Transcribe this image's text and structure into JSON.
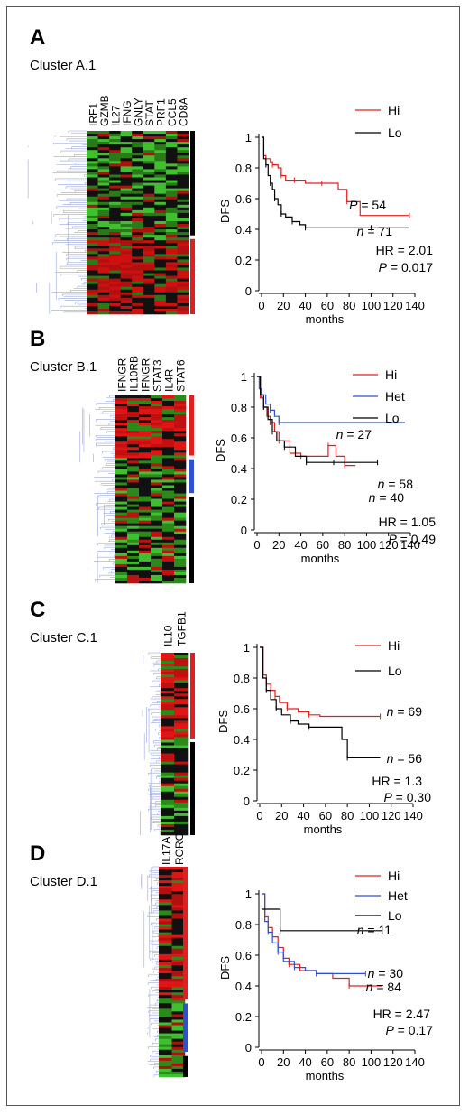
{
  "panels": [
    {
      "label": "A",
      "cluster": "Cluster A.1",
      "genes": [
        "IRF1",
        "GZMB",
        "IL27",
        "IFNG",
        "GNLY",
        "STAT",
        "PRF1",
        "CCL5",
        "CD8A"
      ],
      "sidebars": [
        {
          "color": "#000000",
          "frac": [
            0.0,
            0.57
          ]
        },
        {
          "color": "#e02020",
          "frac": [
            0.59,
            1.0
          ]
        }
      ],
      "heat_colors": [
        "#111111",
        "#b01010",
        "#d01010",
        "#2a7a1a",
        "#40c030",
        "#000000",
        "#101010",
        "#8c0c0c"
      ],
      "km": {
        "legend": [
          {
            "name": "Hi",
            "color": "#e02020"
          },
          {
            "name": "Lo",
            "color": "#000000"
          }
        ],
        "ylabel": "DFS",
        "xlabel": "months",
        "yticks": [
          "0",
          "0.2",
          "0.4",
          "0.6",
          "0.8",
          "1"
        ],
        "xticks": [
          "0",
          "20",
          "40",
          "60",
          "80",
          "100",
          "120",
          "140"
        ],
        "annotations": [
          {
            "text": "P = 54"
          },
          {
            "text": "n = 71"
          },
          {
            "text": "HR = 2.01"
          },
          {
            "text": "P = 0.017"
          }
        ]
      }
    },
    {
      "label": "B",
      "cluster": "Cluster B.1",
      "genes": [
        "IFNGR",
        "IL10RB",
        "IFNGR",
        "STAT3",
        "IL4R",
        "STAT6"
      ],
      "sidebars": [
        {
          "color": "#e02020",
          "frac": [
            0.0,
            0.32
          ]
        },
        {
          "color": "#3050d0",
          "frac": [
            0.34,
            0.52
          ]
        },
        {
          "color": "#000000",
          "frac": [
            0.54,
            1.0
          ]
        }
      ],
      "heat_colors": [
        "#111111",
        "#c01010",
        "#e01515",
        "#2a8a1a",
        "#40c030",
        "#000000",
        "#700a0a",
        "#1a5a10"
      ],
      "km": {
        "legend": [
          {
            "name": "Hi",
            "color": "#e02020"
          },
          {
            "name": "Het",
            "color": "#3050d0"
          },
          {
            "name": "Lo",
            "color": "#000000"
          }
        ],
        "ylabel": "DFS",
        "xlabel": "months",
        "yticks": [
          "0",
          "0.2",
          "0.4",
          "0.6",
          "0.8",
          "1"
        ],
        "xticks": [
          "0",
          "20",
          "40",
          "60",
          "80",
          "100",
          "120",
          "140"
        ],
        "annotations": [
          {
            "text": "n = 27"
          },
          {
            "text": "n = 58"
          },
          {
            "text": "n = 40"
          },
          {
            "text": "HR = 1.05"
          },
          {
            "text": "P = 0.49"
          }
        ]
      }
    },
    {
      "label": "C",
      "cluster": "Cluster C.1",
      "genes": [
        "IL10",
        "TGFB1"
      ],
      "sidebars": [
        {
          "color": "#e02020",
          "frac": [
            0.0,
            0.47
          ]
        },
        {
          "color": "#000000",
          "frac": [
            0.49,
            1.0
          ]
        }
      ],
      "heat_colors": [
        "#111111",
        "#c01010",
        "#e01515",
        "#2a8a1a",
        "#40c030",
        "#000000",
        "#700a0a"
      ],
      "km": {
        "legend": [
          {
            "name": "Hi",
            "color": "#e02020"
          },
          {
            "name": "Lo",
            "color": "#000000"
          }
        ],
        "ylabel": "DFS",
        "xlabel": "months",
        "yticks": [
          "0",
          "0.2",
          "0.4",
          "0.6",
          "0.8",
          "1"
        ],
        "xticks": [
          "0",
          "20",
          "40",
          "60",
          "80",
          "100",
          "120",
          "140"
        ],
        "annotations": [
          {
            "text": "n = 69"
          },
          {
            "text": "n = 56"
          },
          {
            "text": "HR = 1.3"
          },
          {
            "text": "P = 0.30"
          }
        ]
      }
    },
    {
      "label": "D",
      "cluster": "Cluster D.1",
      "genes": [
        "IL17A",
        "RORC"
      ],
      "sidebars": [
        {
          "color": "#e02020",
          "frac": [
            0.0,
            0.63
          ]
        },
        {
          "color": "#3050d0",
          "frac": [
            0.65,
            0.88
          ]
        },
        {
          "color": "#000000",
          "frac": [
            0.9,
            1.0
          ]
        }
      ],
      "heat_colors": [
        "#111111",
        "#b01010",
        "#e01515",
        "#2a8a1a",
        "#40c030",
        "#000000"
      ],
      "km": {
        "legend": [
          {
            "name": "Hi",
            "color": "#e02020"
          },
          {
            "name": "Het",
            "color": "#3050d0"
          },
          {
            "name": "Lo",
            "color": "#000000"
          }
        ],
        "ylabel": "DFS",
        "xlabel": "months",
        "yticks": [
          "0",
          "0.2",
          "0.4",
          "0.6",
          "0.8",
          "1"
        ],
        "xticks": [
          "0",
          "20",
          "40",
          "60",
          "80",
          "100",
          "120",
          "140"
        ],
        "annotations": [
          {
            "text": "n = 11"
          },
          {
            "text": "n = 30"
          },
          {
            "text": "n = 84"
          },
          {
            "text": "HR = 2.47"
          },
          {
            "text": "P = 0.17"
          }
        ]
      }
    }
  ],
  "chart_data": [
    {
      "type": "line",
      "title": "Cluster A.1",
      "xlabel": "months",
      "ylabel": "DFS",
      "xlim": [
        0,
        140
      ],
      "ylim": [
        0,
        1
      ],
      "series": [
        {
          "name": "Hi",
          "color": "#e02020",
          "x": [
            0,
            2,
            4,
            8,
            10,
            15,
            18,
            22,
            30,
            40,
            55,
            70,
            78,
            90,
            135
          ],
          "y": [
            1,
            0.88,
            0.86,
            0.84,
            0.82,
            0.8,
            0.75,
            0.72,
            0.72,
            0.7,
            0.7,
            0.66,
            0.58,
            0.49,
            0.49
          ]
        },
        {
          "name": "Lo",
          "color": "#000000",
          "x": [
            0,
            2,
            4,
            6,
            8,
            10,
            12,
            15,
            18,
            22,
            28,
            35,
            40,
            60,
            100,
            135
          ],
          "y": [
            1,
            0.86,
            0.82,
            0.75,
            0.7,
            0.66,
            0.6,
            0.56,
            0.5,
            0.48,
            0.45,
            0.43,
            0.41,
            0.41,
            0.41,
            0.41
          ]
        }
      ]
    },
    {
      "type": "line",
      "title": "Cluster B.1",
      "xlabel": "months",
      "ylabel": "DFS",
      "xlim": [
        0,
        140
      ],
      "ylim": [
        0,
        1
      ],
      "series": [
        {
          "name": "Hi",
          "color": "#e02020",
          "x": [
            0,
            3,
            6,
            9,
            12,
            16,
            20,
            30,
            40,
            50,
            65,
            72,
            80,
            90
          ],
          "y": [
            1,
            0.86,
            0.8,
            0.74,
            0.7,
            0.64,
            0.58,
            0.5,
            0.48,
            0.48,
            0.55,
            0.48,
            0.42,
            0.42
          ]
        },
        {
          "name": "Het",
          "color": "#3050d0",
          "x": [
            0,
            2,
            4,
            8,
            12,
            16,
            20,
            135
          ],
          "y": [
            1,
            0.92,
            0.88,
            0.82,
            0.78,
            0.74,
            0.7,
            0.7
          ]
        },
        {
          "name": "Lo",
          "color": "#000000",
          "x": [
            0,
            3,
            6,
            10,
            14,
            18,
            25,
            35,
            45,
            55,
            70,
            85,
            110
          ],
          "y": [
            1,
            0.88,
            0.8,
            0.72,
            0.64,
            0.58,
            0.54,
            0.48,
            0.44,
            0.44,
            0.44,
            0.44,
            0.44
          ]
        }
      ]
    },
    {
      "type": "line",
      "title": "Cluster C.1",
      "xlabel": "months",
      "ylabel": "DFS",
      "xlim": [
        0,
        140
      ],
      "ylim": [
        0,
        1
      ],
      "series": [
        {
          "name": "Hi",
          "color": "#e02020",
          "x": [
            0,
            3,
            6,
            10,
            14,
            18,
            25,
            35,
            45,
            55,
            110
          ],
          "y": [
            1,
            0.82,
            0.76,
            0.72,
            0.68,
            0.64,
            0.6,
            0.58,
            0.56,
            0.55,
            0.55
          ]
        },
        {
          "name": "Lo",
          "color": "#000000",
          "x": [
            0,
            3,
            6,
            10,
            15,
            20,
            28,
            35,
            45,
            75,
            80,
            110
          ],
          "y": [
            1,
            0.8,
            0.72,
            0.66,
            0.6,
            0.56,
            0.52,
            0.5,
            0.48,
            0.4,
            0.28,
            0.28
          ]
        }
      ]
    },
    {
      "type": "line",
      "title": "Cluster D.1",
      "xlabel": "months",
      "ylabel": "DFS",
      "xlim": [
        0,
        140
      ],
      "ylim": [
        0,
        1
      ],
      "series": [
        {
          "name": "Hi",
          "color": "#e02020",
          "x": [
            0,
            3,
            6,
            10,
            15,
            20,
            25,
            35,
            50,
            65,
            80,
            110
          ],
          "y": [
            1,
            0.85,
            0.78,
            0.72,
            0.65,
            0.58,
            0.54,
            0.5,
            0.48,
            0.45,
            0.4,
            0.4
          ]
        },
        {
          "name": "Het",
          "color": "#3050d0",
          "x": [
            0,
            3,
            6,
            10,
            15,
            20,
            30,
            40,
            50,
            60,
            95
          ],
          "y": [
            1,
            0.82,
            0.75,
            0.68,
            0.62,
            0.56,
            0.52,
            0.5,
            0.48,
            0.48,
            0.48
          ]
        },
        {
          "name": "Lo",
          "color": "#000000",
          "x": [
            0,
            15,
            17,
            110
          ],
          "y": [
            0.9,
            0.9,
            0.76,
            0.76
          ]
        }
      ]
    }
  ]
}
